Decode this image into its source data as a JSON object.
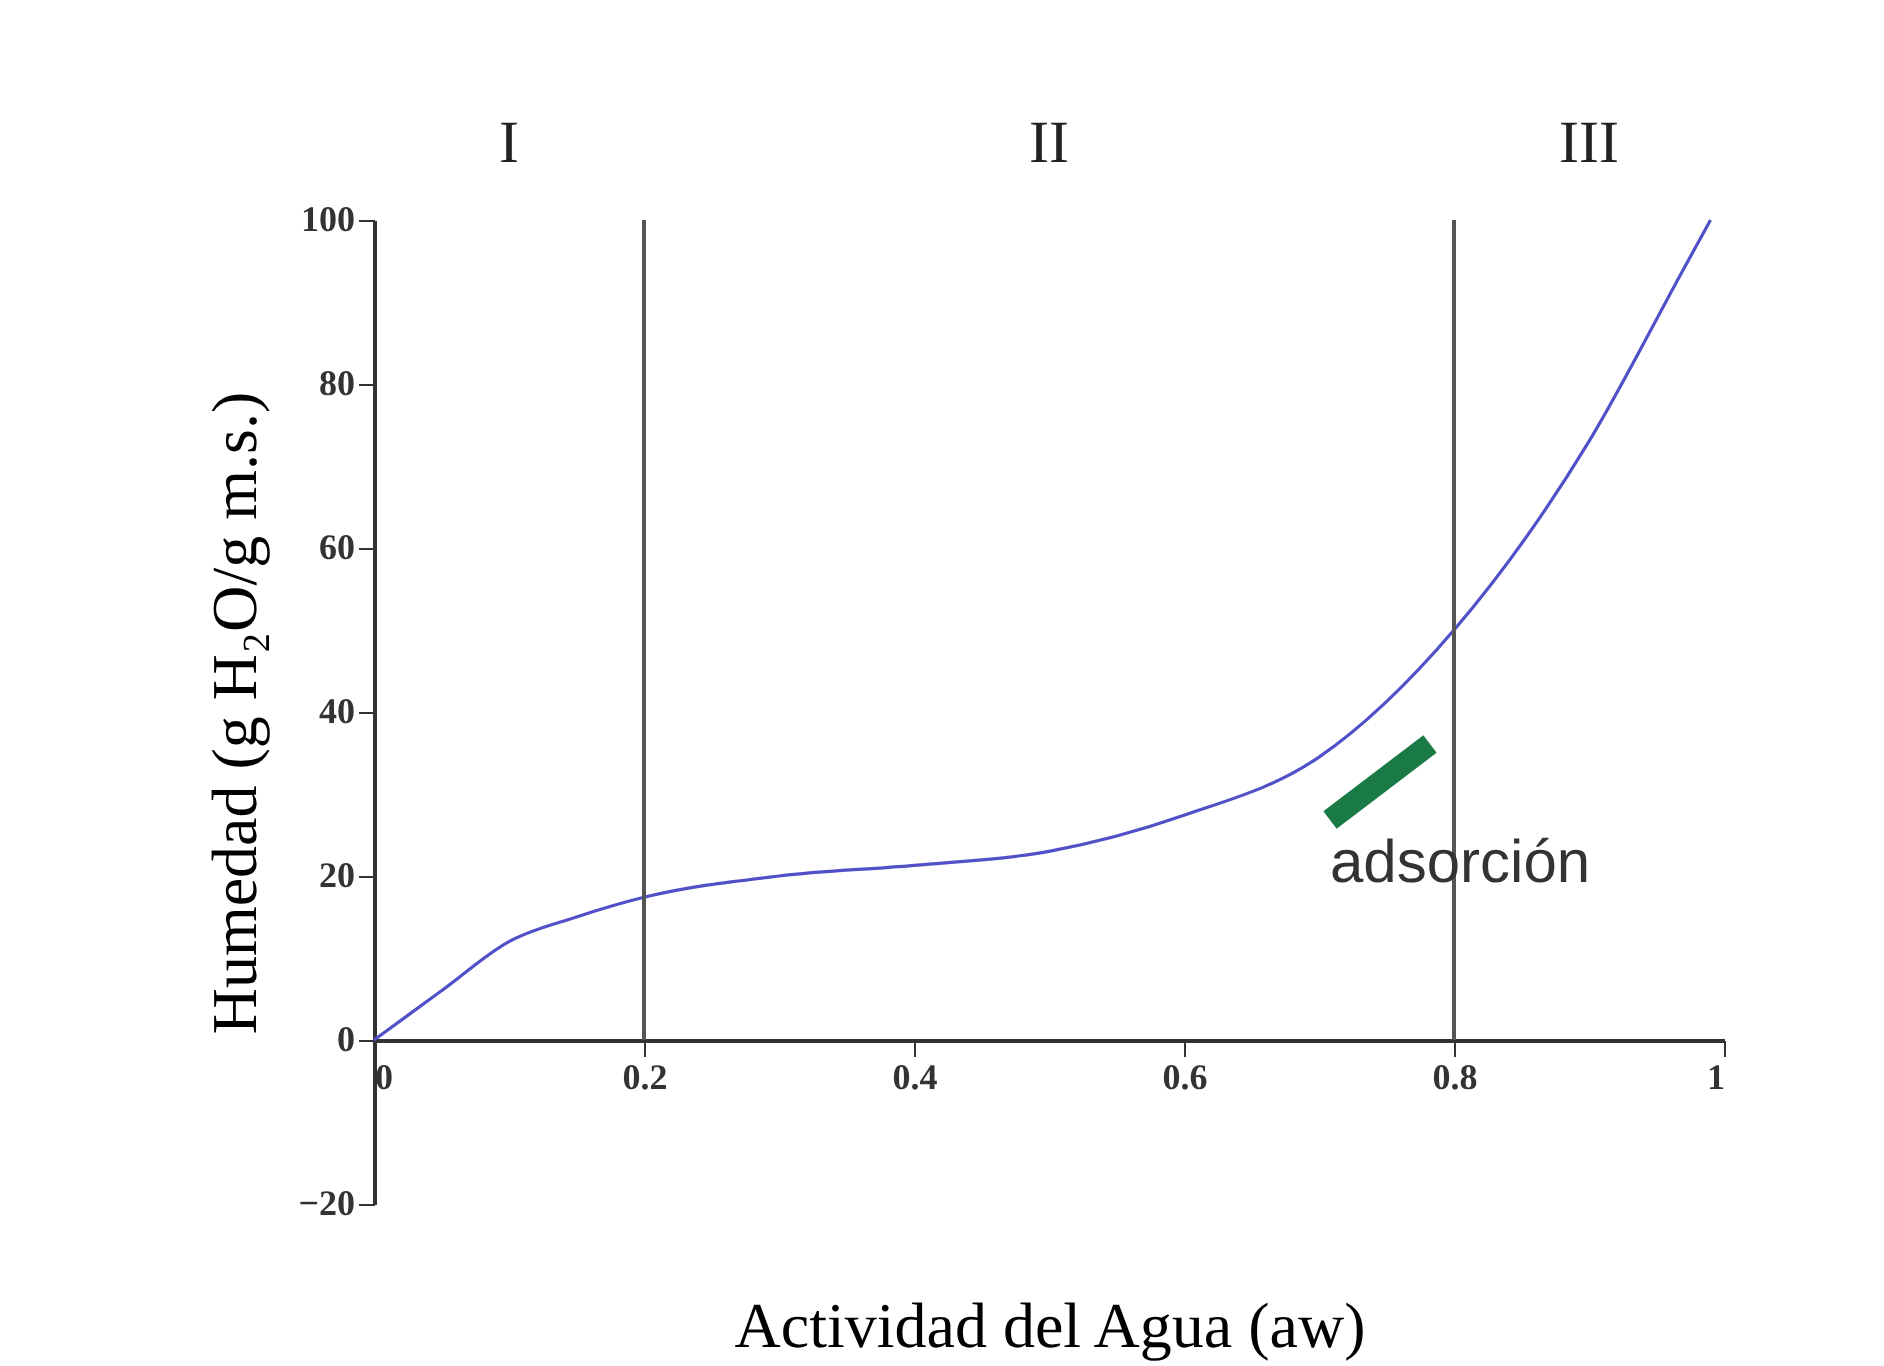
{
  "chart_data": {
    "type": "line",
    "xlabel": "Actividad del Agua (aw)",
    "ylabel": "Humedad (g H₂O/g m.s.)",
    "x": [
      0,
      0.05,
      0.1,
      0.15,
      0.2,
      0.3,
      0.4,
      0.5,
      0.6,
      0.7,
      0.8,
      0.9,
      0.97,
      0.99
    ],
    "series": [
      {
        "color": "#5050c8",
        "values": [
          0,
          6,
          12,
          15,
          17.4,
          20,
          21.3,
          23,
          27.4,
          34.5,
          50,
          73,
          94,
          100
        ]
      }
    ],
    "xlim": [
      0,
      1
    ],
    "xticks": [
      0,
      0.2,
      0.4,
      0.6,
      0.8,
      1
    ],
    "ylim": [
      -20,
      100
    ],
    "yticks": [
      -20,
      0,
      20,
      40,
      60,
      80,
      100
    ],
    "ref_lines": [
      {
        "axis": "x",
        "value": 0.2,
        "color": "#555555"
      },
      {
        "axis": "x",
        "value": 0.8,
        "color": "#555555"
      }
    ],
    "annotations": [
      "I",
      "II",
      "III",
      "adsorción"
    ],
    "grid": false,
    "marker": "none",
    "line_style": "solid"
  }
}
